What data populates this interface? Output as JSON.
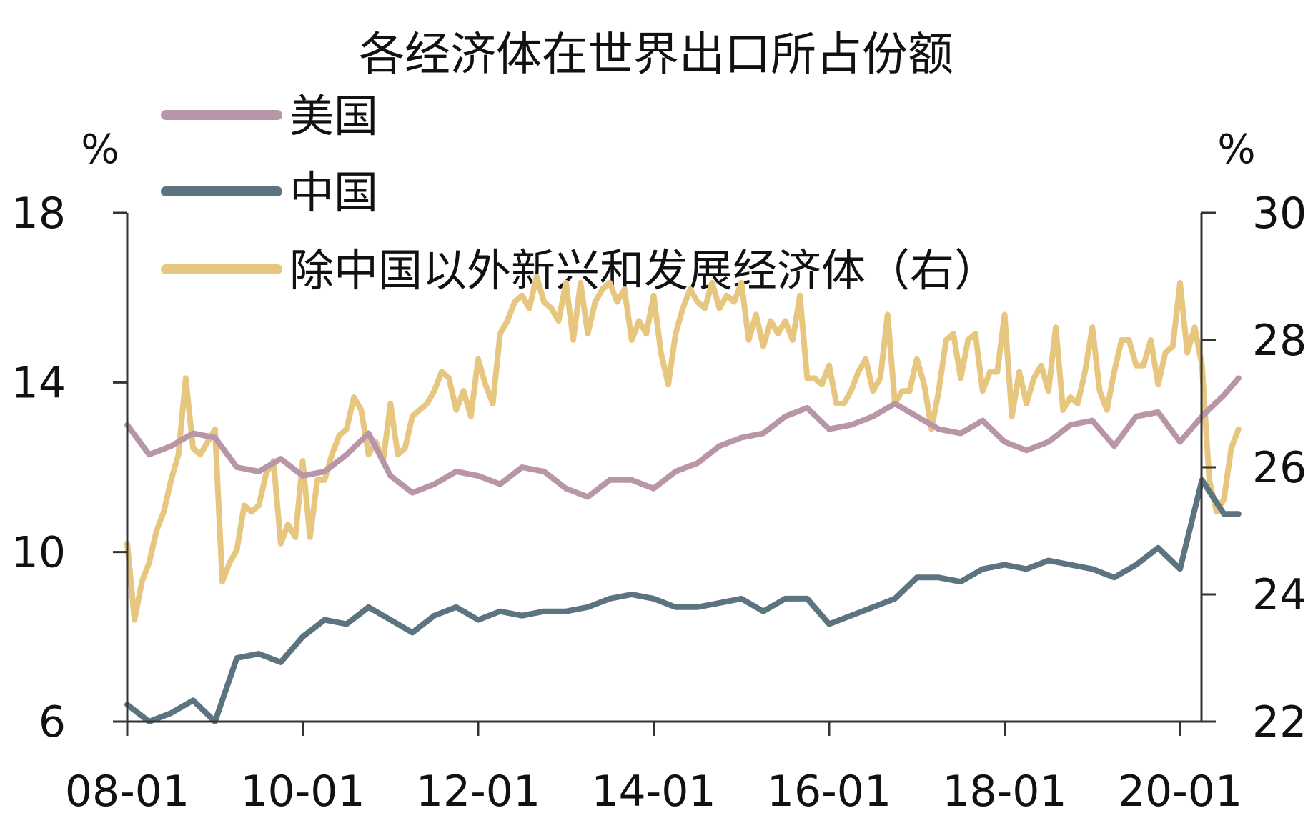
{
  "chart_data": {
    "type": "line",
    "title": "各经济体在世界出口所占份额",
    "left_unit": "%",
    "right_unit": "%",
    "left_axis": {
      "min": 6,
      "max": 18,
      "ticks": [
        "18",
        "14",
        "10",
        "6"
      ]
    },
    "right_axis": {
      "min": 22,
      "max": 30,
      "ticks": [
        "30",
        "28",
        "26",
        "24",
        "22"
      ]
    },
    "x_tick_labels": [
      "08-01",
      "10-01",
      "12-01",
      "14-01",
      "16-01",
      "18-01",
      "20-01"
    ],
    "x_range": [
      "2008-01",
      "2020-09"
    ],
    "legend_placement": "top-left",
    "series": [
      {
        "name": "美国",
        "axis": "left",
        "color": "#b995a8",
        "points": [
          [
            "2008-01",
            13.0
          ],
          [
            "2008-04",
            12.3
          ],
          [
            "2008-07",
            12.5
          ],
          [
            "2008-10",
            12.8
          ],
          [
            "2009-01",
            12.7
          ],
          [
            "2009-04",
            12.0
          ],
          [
            "2009-07",
            11.9
          ],
          [
            "2009-10",
            12.2
          ],
          [
            "2010-01",
            11.8
          ],
          [
            "2010-04",
            11.9
          ],
          [
            "2010-07",
            12.3
          ],
          [
            "2010-10",
            12.8
          ],
          [
            "2011-01",
            11.8
          ],
          [
            "2011-04",
            11.4
          ],
          [
            "2011-07",
            11.6
          ],
          [
            "2011-10",
            11.9
          ],
          [
            "2012-01",
            11.8
          ],
          [
            "2012-04",
            11.6
          ],
          [
            "2012-07",
            12.0
          ],
          [
            "2012-10",
            11.9
          ],
          [
            "2013-01",
            11.5
          ],
          [
            "2013-04",
            11.3
          ],
          [
            "2013-07",
            11.7
          ],
          [
            "2013-10",
            11.7
          ],
          [
            "2014-01",
            11.5
          ],
          [
            "2014-04",
            11.9
          ],
          [
            "2014-07",
            12.1
          ],
          [
            "2014-10",
            12.5
          ],
          [
            "2015-01",
            12.7
          ],
          [
            "2015-04",
            12.8
          ],
          [
            "2015-07",
            13.2
          ],
          [
            "2015-10",
            13.4
          ],
          [
            "2016-01",
            12.9
          ],
          [
            "2016-04",
            13.0
          ],
          [
            "2016-07",
            13.2
          ],
          [
            "2016-10",
            13.5
          ],
          [
            "2017-01",
            13.2
          ],
          [
            "2017-04",
            12.9
          ],
          [
            "2017-07",
            12.8
          ],
          [
            "2017-10",
            13.1
          ],
          [
            "2018-01",
            12.6
          ],
          [
            "2018-04",
            12.4
          ],
          [
            "2018-07",
            12.6
          ],
          [
            "2018-10",
            13.0
          ],
          [
            "2019-01",
            13.1
          ],
          [
            "2019-04",
            12.5
          ],
          [
            "2019-07",
            13.2
          ],
          [
            "2019-10",
            13.3
          ],
          [
            "2020-01",
            12.6
          ],
          [
            "2020-04",
            13.2
          ],
          [
            "2020-07",
            13.7
          ],
          [
            "2020-09",
            14.1
          ]
        ]
      },
      {
        "name": "中国",
        "axis": "left",
        "color": "#5b7480",
        "points": [
          [
            "2008-01",
            6.4
          ],
          [
            "2008-04",
            6.0
          ],
          [
            "2008-07",
            6.2
          ],
          [
            "2008-10",
            6.5
          ],
          [
            "2009-01",
            6.0
          ],
          [
            "2009-04",
            7.5
          ],
          [
            "2009-07",
            7.6
          ],
          [
            "2009-10",
            7.4
          ],
          [
            "2010-01",
            8.0
          ],
          [
            "2010-04",
            8.4
          ],
          [
            "2010-07",
            8.3
          ],
          [
            "2010-10",
            8.7
          ],
          [
            "2011-01",
            8.4
          ],
          [
            "2011-04",
            8.1
          ],
          [
            "2011-07",
            8.5
          ],
          [
            "2011-10",
            8.7
          ],
          [
            "2012-01",
            8.4
          ],
          [
            "2012-04",
            8.6
          ],
          [
            "2012-07",
            8.5
          ],
          [
            "2012-10",
            8.6
          ],
          [
            "2013-01",
            8.6
          ],
          [
            "2013-04",
            8.7
          ],
          [
            "2013-07",
            8.9
          ],
          [
            "2013-10",
            9.0
          ],
          [
            "2014-01",
            8.9
          ],
          [
            "2014-04",
            8.7
          ],
          [
            "2014-07",
            8.7
          ],
          [
            "2014-10",
            8.8
          ],
          [
            "2015-01",
            8.9
          ],
          [
            "2015-04",
            8.6
          ],
          [
            "2015-07",
            8.9
          ],
          [
            "2015-10",
            8.9
          ],
          [
            "2016-01",
            8.3
          ],
          [
            "2016-04",
            8.5
          ],
          [
            "2016-07",
            8.7
          ],
          [
            "2016-10",
            8.9
          ],
          [
            "2017-01",
            9.4
          ],
          [
            "2017-04",
            9.4
          ],
          [
            "2017-07",
            9.3
          ],
          [
            "2017-10",
            9.6
          ],
          [
            "2018-01",
            9.7
          ],
          [
            "2018-04",
            9.6
          ],
          [
            "2018-07",
            9.8
          ],
          [
            "2018-10",
            9.7
          ],
          [
            "2019-01",
            9.6
          ],
          [
            "2019-04",
            9.4
          ],
          [
            "2019-07",
            9.7
          ],
          [
            "2019-10",
            10.1
          ],
          [
            "2020-01",
            9.6
          ],
          [
            "2020-04",
            11.7
          ],
          [
            "2020-07",
            10.9
          ],
          [
            "2020-09",
            10.9
          ]
        ]
      },
      {
        "name": "除中国以外新兴和发展经济体（右）",
        "axis": "right",
        "color": "#e7c67f",
        "points": [
          [
            "2008-01",
            24.8
          ],
          [
            "2008-02",
            23.6
          ],
          [
            "2008-03",
            24.2
          ],
          [
            "2008-04",
            24.5
          ],
          [
            "2008-05",
            25.0
          ],
          [
            "2008-06",
            25.3
          ],
          [
            "2008-07",
            25.8
          ],
          [
            "2008-08",
            26.2
          ],
          [
            "2008-09",
            27.4
          ],
          [
            "2008-10",
            26.3
          ],
          [
            "2008-11",
            26.2
          ],
          [
            "2008-12",
            26.4
          ],
          [
            "2009-01",
            26.6
          ],
          [
            "2009-02",
            24.2
          ],
          [
            "2009-03",
            24.5
          ],
          [
            "2009-04",
            24.7
          ],
          [
            "2009-05",
            25.4
          ],
          [
            "2009-06",
            25.3
          ],
          [
            "2009-07",
            25.4
          ],
          [
            "2009-08",
            25.9
          ],
          [
            "2009-09",
            26.1
          ],
          [
            "2009-10",
            24.8
          ],
          [
            "2009-11",
            25.1
          ],
          [
            "2009-12",
            24.9
          ],
          [
            "2010-01",
            26.1
          ],
          [
            "2010-02",
            24.9
          ],
          [
            "2010-03",
            25.8
          ],
          [
            "2010-04",
            25.8
          ],
          [
            "2010-05",
            26.2
          ],
          [
            "2010-06",
            26.5
          ],
          [
            "2010-07",
            26.6
          ],
          [
            "2010-08",
            27.1
          ],
          [
            "2010-09",
            26.9
          ],
          [
            "2010-10",
            26.2
          ],
          [
            "2010-11",
            26.4
          ],
          [
            "2010-12",
            26.1
          ],
          [
            "2011-01",
            27.0
          ],
          [
            "2011-02",
            26.2
          ],
          [
            "2011-03",
            26.3
          ],
          [
            "2011-04",
            26.8
          ],
          [
            "2011-05",
            26.9
          ],
          [
            "2011-06",
            27.0
          ],
          [
            "2011-07",
            27.2
          ],
          [
            "2011-08",
            27.5
          ],
          [
            "2011-09",
            27.4
          ],
          [
            "2011-10",
            26.9
          ],
          [
            "2011-11",
            27.2
          ],
          [
            "2011-12",
            26.8
          ],
          [
            "2012-01",
            27.7
          ],
          [
            "2012-02",
            27.3
          ],
          [
            "2012-03",
            27.0
          ],
          [
            "2012-04",
            28.1
          ],
          [
            "2012-05",
            28.3
          ],
          [
            "2012-06",
            28.6
          ],
          [
            "2012-07",
            28.7
          ],
          [
            "2012-08",
            28.5
          ],
          [
            "2012-09",
            29.0
          ],
          [
            "2012-10",
            28.6
          ],
          [
            "2012-11",
            28.5
          ],
          [
            "2012-12",
            28.3
          ],
          [
            "2013-01",
            28.9
          ],
          [
            "2013-02",
            28.0
          ],
          [
            "2013-03",
            28.9
          ],
          [
            "2013-04",
            28.1
          ],
          [
            "2013-05",
            28.6
          ],
          [
            "2013-06",
            28.8
          ],
          [
            "2013-07",
            28.9
          ],
          [
            "2013-08",
            28.6
          ],
          [
            "2013-09",
            28.8
          ],
          [
            "2013-10",
            28.0
          ],
          [
            "2013-11",
            28.3
          ],
          [
            "2013-12",
            28.1
          ],
          [
            "2014-01",
            28.7
          ],
          [
            "2014-02",
            27.8
          ],
          [
            "2014-03",
            27.3
          ],
          [
            "2014-04",
            28.1
          ],
          [
            "2014-05",
            28.5
          ],
          [
            "2014-06",
            28.8
          ],
          [
            "2014-07",
            28.6
          ],
          [
            "2014-08",
            28.5
          ],
          [
            "2014-09",
            28.9
          ],
          [
            "2014-10",
            28.5
          ],
          [
            "2014-11",
            28.7
          ],
          [
            "2014-12",
            28.6
          ],
          [
            "2015-01",
            28.9
          ],
          [
            "2015-02",
            28.0
          ],
          [
            "2015-03",
            28.4
          ],
          [
            "2015-04",
            27.9
          ],
          [
            "2015-05",
            28.3
          ],
          [
            "2015-06",
            28.1
          ],
          [
            "2015-07",
            28.3
          ],
          [
            "2015-08",
            28.0
          ],
          [
            "2015-09",
            28.7
          ],
          [
            "2015-10",
            27.4
          ],
          [
            "2015-11",
            27.4
          ],
          [
            "2015-12",
            27.3
          ],
          [
            "2016-01",
            27.6
          ],
          [
            "2016-02",
            27.0
          ],
          [
            "2016-03",
            27.0
          ],
          [
            "2016-04",
            27.2
          ],
          [
            "2016-05",
            27.5
          ],
          [
            "2016-06",
            27.7
          ],
          [
            "2016-07",
            27.2
          ],
          [
            "2016-08",
            27.4
          ],
          [
            "2016-09",
            28.4
          ],
          [
            "2016-10",
            27.0
          ],
          [
            "2016-11",
            27.2
          ],
          [
            "2016-12",
            27.2
          ],
          [
            "2017-01",
            27.7
          ],
          [
            "2017-02",
            27.3
          ],
          [
            "2017-03",
            26.6
          ],
          [
            "2017-04",
            27.2
          ],
          [
            "2017-05",
            28.0
          ],
          [
            "2017-06",
            28.1
          ],
          [
            "2017-07",
            27.4
          ],
          [
            "2017-08",
            28.0
          ],
          [
            "2017-09",
            28.1
          ],
          [
            "2017-10",
            27.2
          ],
          [
            "2017-11",
            27.5
          ],
          [
            "2017-12",
            27.5
          ],
          [
            "2018-01",
            28.4
          ],
          [
            "2018-02",
            26.8
          ],
          [
            "2018-03",
            27.5
          ],
          [
            "2018-04",
            27.0
          ],
          [
            "2018-05",
            27.4
          ],
          [
            "2018-06",
            27.6
          ],
          [
            "2018-07",
            27.2
          ],
          [
            "2018-08",
            28.2
          ],
          [
            "2018-09",
            26.9
          ],
          [
            "2018-10",
            27.1
          ],
          [
            "2018-11",
            27.0
          ],
          [
            "2018-12",
            27.5
          ],
          [
            "2019-01",
            28.2
          ],
          [
            "2019-02",
            27.2
          ],
          [
            "2019-03",
            26.9
          ],
          [
            "2019-04",
            27.5
          ],
          [
            "2019-05",
            28.0
          ],
          [
            "2019-06",
            28.0
          ],
          [
            "2019-07",
            27.6
          ],
          [
            "2019-08",
            27.6
          ],
          [
            "2019-09",
            28.0
          ],
          [
            "2019-10",
            27.3
          ],
          [
            "2019-11",
            27.8
          ],
          [
            "2019-12",
            27.9
          ],
          [
            "2020-01",
            28.9
          ],
          [
            "2020-02",
            27.8
          ],
          [
            "2020-03",
            28.2
          ],
          [
            "2020-04",
            27.6
          ],
          [
            "2020-05",
            25.8
          ],
          [
            "2020-06",
            25.3
          ],
          [
            "2020-07",
            25.5
          ],
          [
            "2020-08",
            26.3
          ],
          [
            "2020-09",
            26.6
          ]
        ]
      }
    ]
  }
}
